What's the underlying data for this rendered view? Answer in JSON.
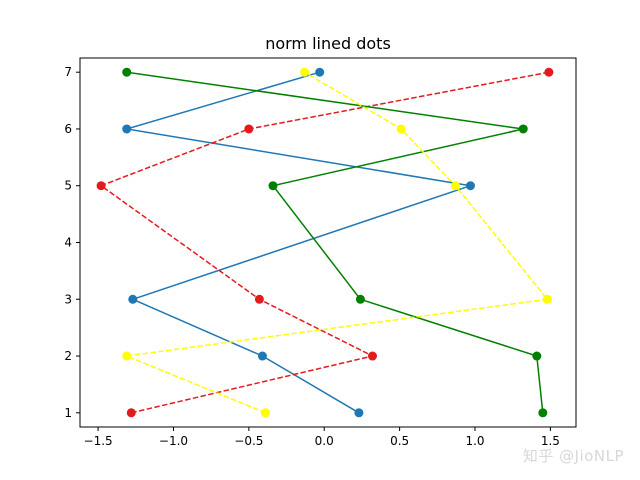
{
  "chart_data": {
    "type": "line",
    "title": "norm lined dots",
    "xlabel": "",
    "ylabel": "",
    "xlim": [
      -1.62,
      1.67
    ],
    "ylim": [
      0.75,
      7.25
    ],
    "x_ticks": [
      -1.5,
      -1.0,
      -0.5,
      0.0,
      0.5,
      1.0,
      1.5
    ],
    "x_tick_labels": [
      "−1.5",
      "−1.0",
      "−0.5",
      "0.0",
      "0.5",
      "1.0",
      "1.5"
    ],
    "y_ticks": [
      1,
      2,
      3,
      4,
      5,
      6,
      7
    ],
    "y_tick_labels": [
      "1",
      "2",
      "3",
      "4",
      "5",
      "6",
      "7"
    ],
    "grid": false,
    "series": [
      {
        "name": "blue",
        "color": "#1f77b4",
        "linestyle": "solid",
        "points": [
          [
            0.23,
            1
          ],
          [
            -0.41,
            2
          ],
          [
            -1.27,
            3
          ],
          [
            0.97,
            5
          ],
          [
            -1.31,
            6
          ],
          [
            -0.03,
            7
          ]
        ]
      },
      {
        "name": "red",
        "color": "#e41a1c",
        "linestyle": "dashed",
        "points": [
          [
            -1.28,
            1
          ],
          [
            0.32,
            2
          ],
          [
            -0.43,
            3
          ],
          [
            -1.48,
            5
          ],
          [
            -0.5,
            6
          ],
          [
            1.49,
            7
          ]
        ]
      },
      {
        "name": "green",
        "color": "#008000",
        "linestyle": "solid",
        "points": [
          [
            1.45,
            1
          ],
          [
            1.41,
            2
          ],
          [
            0.24,
            3
          ],
          [
            -0.34,
            5
          ],
          [
            1.32,
            6
          ],
          [
            -1.31,
            7
          ]
        ]
      },
      {
        "name": "yellow",
        "color": "#ffff00",
        "linestyle": "dashed",
        "points": [
          [
            -0.39,
            1
          ],
          [
            -1.31,
            2
          ],
          [
            1.48,
            3
          ],
          [
            0.87,
            5
          ],
          [
            0.51,
            6
          ],
          [
            -0.13,
            7
          ]
        ]
      }
    ]
  },
  "watermark": "知乎 @JioNLP"
}
